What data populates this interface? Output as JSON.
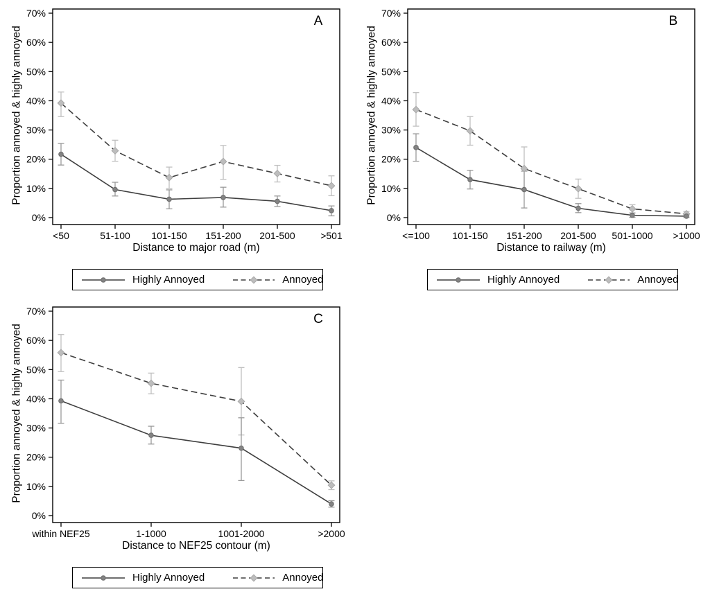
{
  "colors": {
    "axis": "#000000",
    "text": "#000000",
    "line": "#3f3f3f",
    "highly_annoyed_marker": "#838383",
    "highly_annoyed_marker_edge": "#6c6c6c",
    "highly_annoyed_error": "#999999",
    "annoyed_marker": "#bdbdbd",
    "annoyed_marker_edge": "#a8a8a8",
    "annoyed_error": "#bfbfbf",
    "background": "#ffffff"
  },
  "chart_data": [
    {
      "type": "line",
      "panel_label": "A",
      "xlabel": "Distance to major road (m)",
      "ylabel": "Proportion annoyed & highly annoyed",
      "ylim": [
        0,
        70
      ],
      "ytick_step": 10,
      "ytick_suffix": "%",
      "grid": false,
      "legend_position": "bottom",
      "categories": [
        "<50",
        "51-100",
        "101-150",
        "151-200",
        "201-500",
        ">501"
      ],
      "series": [
        {
          "name": "Highly Annoyed",
          "style": "solid",
          "marker": "circle",
          "values": [
            21.7,
            9.6,
            6.3,
            6.9,
            5.6,
            2.4
          ],
          "ci_low": [
            18.0,
            7.4,
            3.0,
            3.6,
            3.8,
            0.6
          ],
          "ci_high": [
            25.4,
            12.1,
            9.5,
            10.4,
            7.4,
            4.0
          ]
        },
        {
          "name": "Annoyed",
          "style": "dashed",
          "marker": "diamond",
          "values": [
            39.2,
            22.9,
            13.7,
            19.2,
            15.1,
            10.9
          ],
          "ci_low": [
            34.6,
            19.3,
            10.0,
            13.1,
            12.2,
            7.5
          ],
          "ci_high": [
            43.0,
            26.5,
            17.3,
            24.7,
            17.9,
            14.3
          ]
        }
      ]
    },
    {
      "type": "line",
      "panel_label": "B",
      "xlabel": "Distance to railway (m)",
      "ylabel": "Proportion annoyed & highly annoyed",
      "ylim": [
        0,
        70
      ],
      "ytick_step": 10,
      "ytick_suffix": "%",
      "grid": false,
      "legend_position": "bottom",
      "categories": [
        "<=100",
        "101-150",
        "151-200",
        "201-500",
        "501-1000",
        ">1000"
      ],
      "series": [
        {
          "name": "Highly Annoyed",
          "style": "solid",
          "marker": "circle",
          "values": [
            24.0,
            13.0,
            9.6,
            3.2,
            0.8,
            0.5
          ],
          "ci_low": [
            19.3,
            9.8,
            3.3,
            1.7,
            0.1,
            0.0
          ],
          "ci_high": [
            28.7,
            16.2,
            15.9,
            4.8,
            1.6,
            1.0
          ]
        },
        {
          "name": "Annoyed",
          "style": "dashed",
          "marker": "diamond",
          "values": [
            37.0,
            29.7,
            16.8,
            9.9,
            3.0,
            1.3
          ],
          "ci_low": [
            31.3,
            24.8,
            9.4,
            6.6,
            1.6,
            0.5
          ],
          "ci_high": [
            42.8,
            34.6,
            24.2,
            13.2,
            4.4,
            2.1
          ]
        }
      ]
    },
    {
      "type": "line",
      "panel_label": "C",
      "xlabel": "Distance to NEF25 contour (m)",
      "ylabel": "Proportion annoyed & highly annoyed",
      "ylim": [
        0,
        70
      ],
      "ytick_step": 10,
      "ytick_suffix": "%",
      "grid": false,
      "legend_position": "bottom",
      "categories": [
        "within NEF25",
        "1-1000",
        "1001-2000",
        ">2000"
      ],
      "series": [
        {
          "name": "Highly Annoyed",
          "style": "solid",
          "marker": "circle",
          "values": [
            39.3,
            27.5,
            23.1,
            4.0
          ],
          "ci_low": [
            31.6,
            24.5,
            12.0,
            2.9
          ],
          "ci_high": [
            46.4,
            30.6,
            33.5,
            5.1
          ]
        },
        {
          "name": "Annoyed",
          "style": "dashed",
          "marker": "diamond",
          "values": [
            55.8,
            45.3,
            39.1,
            10.4
          ],
          "ci_low": [
            49.3,
            41.7,
            27.6,
            8.9
          ],
          "ci_high": [
            62.0,
            48.8,
            50.7,
            11.9
          ]
        }
      ]
    }
  ]
}
